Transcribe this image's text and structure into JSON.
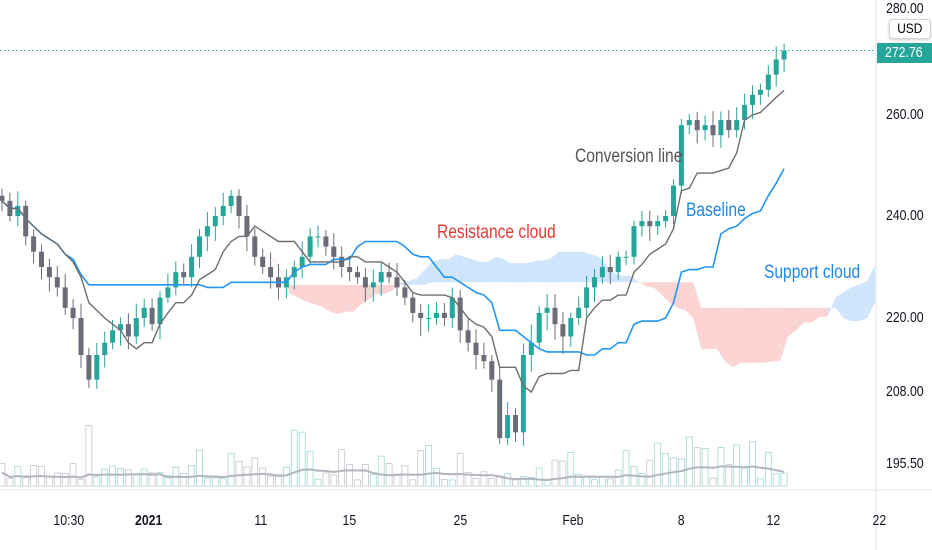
{
  "chart_data": {
    "type": "candlestick",
    "title": "",
    "currency": "USD",
    "last_price": "272.76",
    "y_ticks": [
      "280.00",
      "260.00",
      "240.00",
      "220.00",
      "208.00",
      "195.50"
    ],
    "y_tick_values": [
      280,
      260,
      240,
      220,
      208,
      195.5
    ],
    "x_ticks": [
      "10:30",
      "2021",
      "11",
      "15",
      "25",
      "Feb",
      "8",
      "12",
      "22"
    ],
    "annotations": {
      "conversion": "Conversion line",
      "baseline": "Baseline",
      "resistance": "Resistance cloud",
      "support": "Support cloud"
    },
    "closes": [
      243,
      240,
      242,
      236,
      233,
      230,
      228,
      226,
      222,
      220,
      214,
      210,
      214,
      216,
      218,
      219,
      217,
      220,
      222,
      219,
      224,
      226,
      229,
      228,
      232,
      236,
      238,
      240,
      242,
      244,
      240,
      236,
      232,
      230,
      228,
      226,
      228,
      230,
      232,
      236,
      236,
      234,
      232,
      230,
      229,
      228,
      226,
      227,
      229,
      228,
      226,
      224,
      221,
      220,
      220,
      221,
      220,
      224,
      218,
      216,
      214,
      213,
      210,
      200,
      204,
      201,
      214,
      216,
      221,
      222,
      219,
      217,
      220,
      222,
      226,
      228,
      230,
      229,
      232,
      232,
      238,
      239,
      238,
      239,
      240,
      246,
      258,
      259,
      257,
      258,
      256,
      259,
      257,
      259,
      262,
      264,
      265,
      268,
      271,
      272.76
    ],
    "indicators": {
      "conversion_period": 9,
      "base_period": 26,
      "span_b_period": 52,
      "displacement": 26
    },
    "colors": {
      "up": "#26a69a",
      "down": "#6a6d78",
      "conversion": "#6d6d6d",
      "baseline": "#2196f3",
      "cloud_up": "#cfe5fb",
      "cloud_down": "#fbd3d3",
      "label_red": "#e53935",
      "label_blue": "#1e88e5"
    }
  }
}
